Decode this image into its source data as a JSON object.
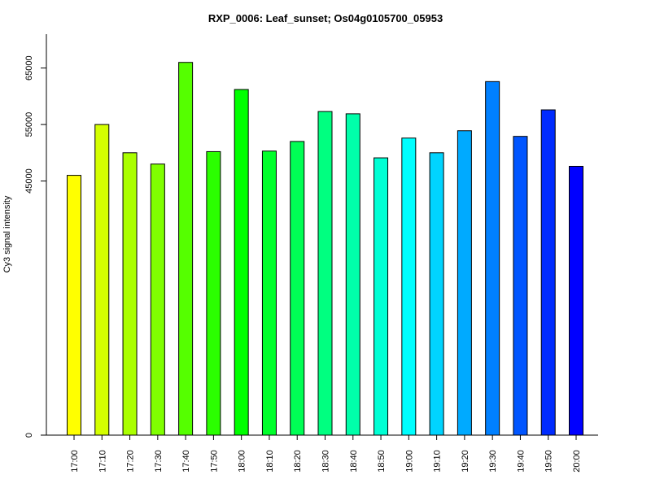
{
  "chart_data": {
    "type": "bar",
    "title": "RXP_0006: Leaf_sunset; Os04g0105700_05953",
    "xlabel": "",
    "ylabel": "Cy3 signal intensity",
    "ylim": [
      0,
      71000
    ],
    "yticks": [
      0,
      45000,
      55000,
      65000
    ],
    "ytick_labels": [
      "0",
      "45000",
      "55000",
      "65000"
    ],
    "categories": [
      "17:00",
      "17:10",
      "17:20",
      "17:30",
      "17:40",
      "17:50",
      "18:00",
      "18:10",
      "18:20",
      "18:30",
      "18:40",
      "18:50",
      "19:00",
      "19:10",
      "19:20",
      "19:30",
      "19:40",
      "19:50",
      "20:00"
    ],
    "values": [
      46000,
      55000,
      50000,
      48000,
      66000,
      50200,
      61200,
      50300,
      52000,
      57300,
      56900,
      49100,
      52600,
      50000,
      53900,
      62600,
      52900,
      57600,
      47600
    ],
    "colors": [
      "#FFFF00",
      "#D4FF00",
      "#AAFF00",
      "#80FF00",
      "#55FF00",
      "#2BFF00",
      "#00FF00",
      "#00FF2B",
      "#00FF55",
      "#00FF80",
      "#00FFAA",
      "#00FFD4",
      "#00FFFF",
      "#00D4FF",
      "#00AAFF",
      "#0080FF",
      "#0055FF",
      "#002BFF",
      "#0000FF"
    ],
    "grid": false,
    "legend": "none"
  }
}
